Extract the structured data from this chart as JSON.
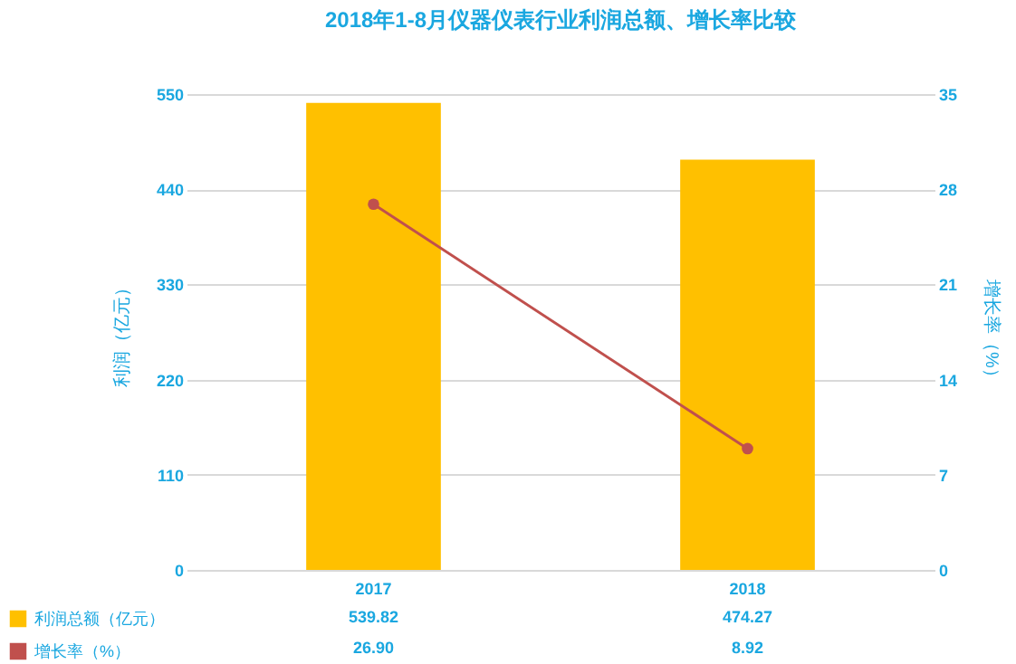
{
  "chart_data": {
    "type": "bar",
    "title": "2018年1-8月仪器仪表行业利润总额、增长率比较",
    "categories": [
      "2017",
      "2018"
    ],
    "series": [
      {
        "name": "利润总额（亿元）",
        "color": "#ffc000",
        "values": [
          539.82,
          474.27
        ],
        "value_labels": [
          "539.82",
          "474.27"
        ]
      },
      {
        "name": "增长率（%）",
        "type": "line",
        "axis": "y2",
        "color": "#c0504d",
        "values": [
          26.9,
          8.92
        ],
        "value_labels": [
          "26.90",
          "8.92"
        ],
        "marker": "circle"
      }
    ],
    "ylabel": "利润（亿元）",
    "y2label": "增长率（%）",
    "ylim": [
      0,
      550
    ],
    "yticks": [
      0,
      110,
      220,
      330,
      440,
      550
    ],
    "y2lim": [
      0,
      35
    ],
    "y2ticks": [
      0,
      7,
      14,
      21,
      28,
      35
    ],
    "grid": "y",
    "legend": "bottom left"
  }
}
